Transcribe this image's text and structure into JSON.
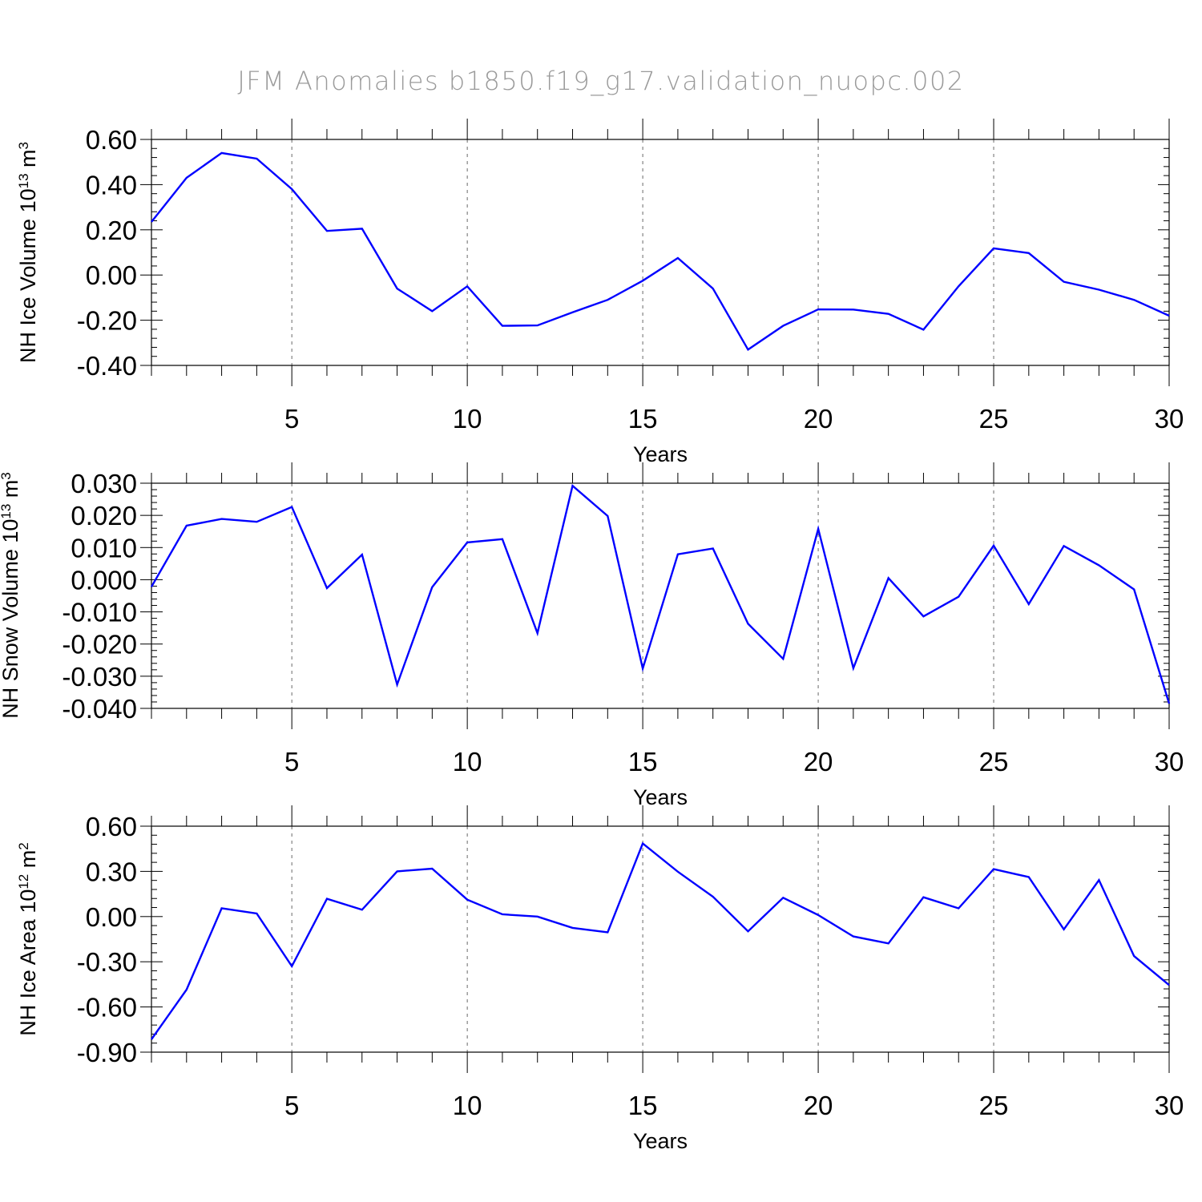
{
  "title": "JFM Anomalies b1850.f19_g17.validation_nuopc.002",
  "chart_data": [
    {
      "type": "line",
      "ylabel": "NH Ice Volume 10",
      "ylabel_exp": "13",
      "ylabel_unit": " m",
      "ylabel_unit_exp": "3",
      "xlabel": "Years",
      "xlim": [
        1,
        30
      ],
      "ylim": [
        -0.4,
        0.6
      ],
      "yticks": [
        -0.4,
        -0.2,
        0.0,
        0.2,
        0.4,
        0.6
      ],
      "ytick_labels": [
        "-0.40",
        "-0.20",
        "0.00",
        "0.20",
        "0.40",
        "0.60"
      ],
      "xticks": [
        5,
        10,
        15,
        20,
        25,
        30
      ],
      "xtick_labels": [
        "5",
        "10",
        "15",
        "20",
        "25",
        "30"
      ],
      "grid": "vertical dashed at major x ticks",
      "line_color": "#0000ff",
      "x": [
        1,
        2,
        3,
        4,
        5,
        6,
        7,
        8,
        9,
        10,
        11,
        12,
        13,
        14,
        15,
        16,
        17,
        18,
        19,
        20,
        21,
        22,
        23,
        24,
        25,
        26,
        27,
        28,
        29,
        30
      ],
      "values": [
        0.235,
        0.43,
        0.54,
        0.515,
        0.38,
        0.195,
        0.205,
        -0.06,
        -0.16,
        -0.05,
        -0.225,
        -0.223,
        -0.165,
        -0.11,
        -0.025,
        0.075,
        -0.06,
        -0.33,
        -0.225,
        -0.152,
        -0.153,
        -0.172,
        -0.242,
        -0.05,
        0.118,
        0.097,
        -0.03,
        -0.065,
        -0.11,
        -0.18
      ]
    },
    {
      "type": "line",
      "ylabel": "NH Snow Volume 10",
      "ylabel_exp": "13",
      "ylabel_unit": " m",
      "ylabel_unit_exp": "3",
      "xlabel": "Years",
      "xlim": [
        1,
        30
      ],
      "ylim": [
        -0.04,
        0.03
      ],
      "yticks": [
        -0.04,
        -0.03,
        -0.02,
        -0.01,
        0.0,
        0.01,
        0.02,
        0.03
      ],
      "ytick_labels": [
        "-0.040",
        "-0.030",
        "-0.020",
        "-0.010",
        "0.000",
        "0.010",
        "0.020",
        "0.030"
      ],
      "xticks": [
        5,
        10,
        15,
        20,
        25,
        30
      ],
      "xtick_labels": [
        "5",
        "10",
        "15",
        "20",
        "25",
        "30"
      ],
      "grid": "vertical dashed at major x ticks",
      "line_color": "#0000ff",
      "x": [
        1,
        2,
        3,
        4,
        5,
        6,
        7,
        8,
        9,
        10,
        11,
        12,
        13,
        14,
        15,
        16,
        17,
        18,
        19,
        20,
        21,
        22,
        23,
        24,
        25,
        26,
        27,
        28,
        29,
        30
      ],
      "values": [
        -0.0022,
        0.0168,
        0.0189,
        0.018,
        0.0226,
        -0.0026,
        0.0078,
        -0.0326,
        -0.0023,
        0.0116,
        0.0126,
        -0.0166,
        0.0292,
        0.0198,
        -0.0276,
        0.0079,
        0.0097,
        -0.0137,
        -0.0246,
        0.0158,
        -0.0275,
        0.0005,
        -0.0114,
        -0.0053,
        0.0106,
        -0.0076,
        0.0105,
        0.0045,
        -0.003,
        -0.0385
      ]
    },
    {
      "type": "line",
      "ylabel": "NH Ice Area 10",
      "ylabel_exp": "12",
      "ylabel_unit": " m",
      "ylabel_unit_exp": "2",
      "xlabel": "Years",
      "xlim": [
        1,
        30
      ],
      "ylim": [
        -0.9,
        0.6
      ],
      "yticks": [
        -0.9,
        -0.6,
        -0.3,
        0.0,
        0.3,
        0.6
      ],
      "ytick_labels": [
        "-0.90",
        "-0.60",
        "-0.30",
        "0.00",
        "0.30",
        "0.60"
      ],
      "xticks": [
        5,
        10,
        15,
        20,
        25,
        30
      ],
      "xtick_labels": [
        "5",
        "10",
        "15",
        "20",
        "25",
        "30"
      ],
      "grid": "vertical dashed at major x ticks",
      "line_color": "#0000ff",
      "x": [
        1,
        2,
        3,
        4,
        5,
        6,
        7,
        8,
        9,
        10,
        11,
        12,
        13,
        14,
        15,
        16,
        17,
        18,
        19,
        20,
        21,
        22,
        23,
        24,
        25,
        26,
        27,
        28,
        29,
        30
      ],
      "values": [
        -0.815,
        -0.485,
        0.055,
        0.02,
        -0.33,
        0.118,
        0.045,
        0.3,
        0.318,
        0.112,
        0.015,
        0.0,
        -0.075,
        -0.105,
        0.485,
        0.298,
        0.132,
        -0.098,
        0.125,
        0.01,
        -0.132,
        -0.178,
        0.128,
        0.055,
        0.315,
        0.262,
        -0.085,
        0.242,
        -0.262,
        -0.455
      ]
    }
  ]
}
